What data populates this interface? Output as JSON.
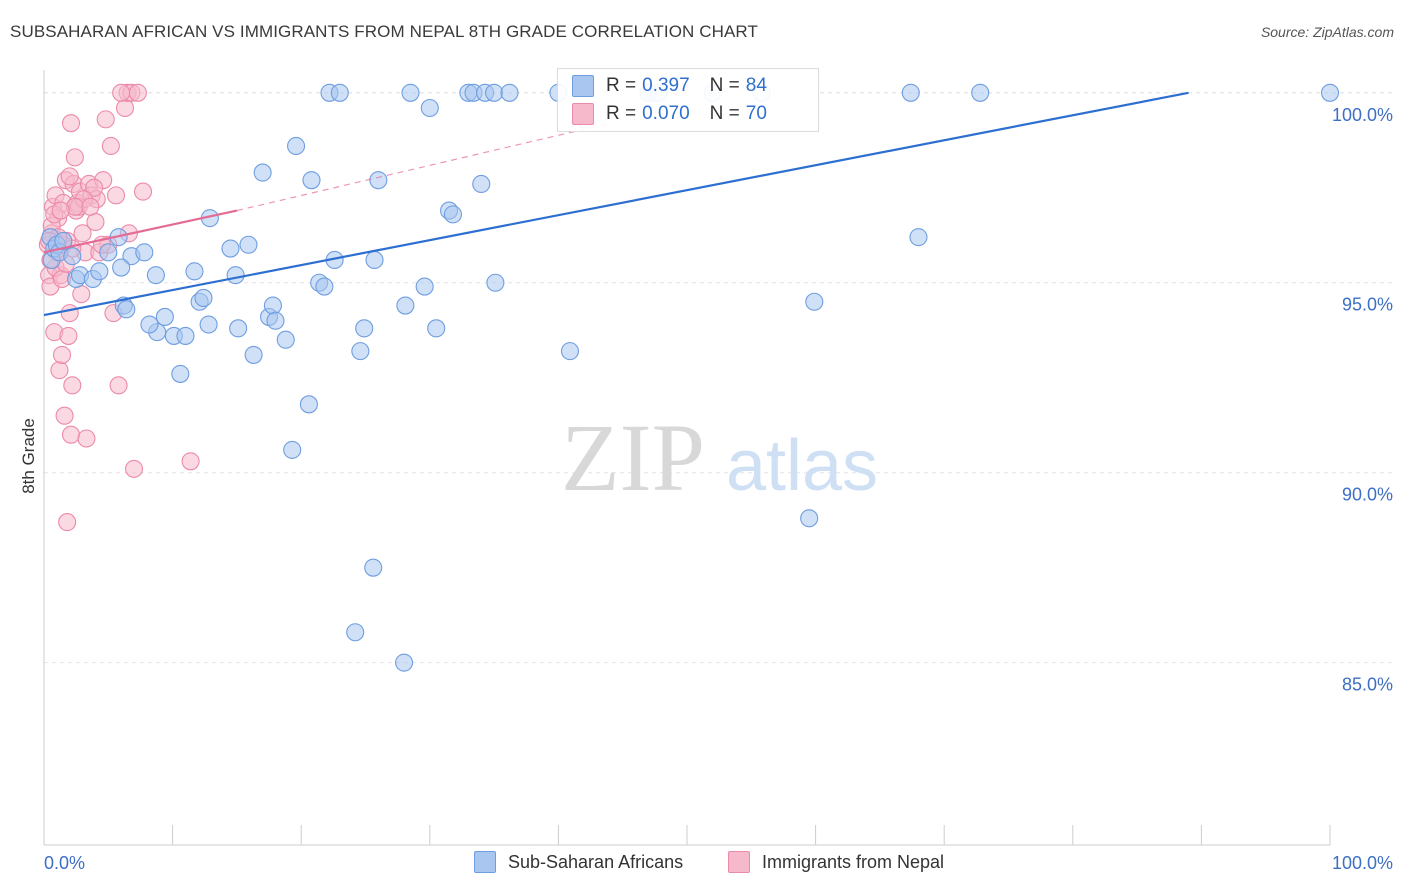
{
  "title": "SUBSAHARAN AFRICAN VS IMMIGRANTS FROM NEPAL 8TH GRADE CORRELATION CHART",
  "source": "Source: ZipAtlas.com",
  "watermark": {
    "zip": "ZIP",
    "atlas": "atlas"
  },
  "colors": {
    "blue_fill": "#a8c6f0",
    "blue_stroke": "#6f9ee0",
    "blue_line": "#2d6fd1",
    "pink_fill": "#f6b9cc",
    "pink_stroke": "#ec8aa9",
    "pink_line": "#e36b94",
    "axis_text": "#3d6fc4",
    "grid": "#e4e4e4"
  },
  "legend_top": [
    {
      "r_label": "R =",
      "r_value": "0.397",
      "n_label": "N =",
      "n_value": "84",
      "series": "blue"
    },
    {
      "r_label": "R =",
      "r_value": "0.070",
      "n_label": "N =",
      "n_value": "70",
      "series": "pink"
    }
  ],
  "legend_bottom": [
    {
      "label": "Sub-Saharan Africans",
      "series": "blue"
    },
    {
      "label": "Immigrants from Nepal",
      "series": "pink"
    }
  ],
  "chart_data": {
    "type": "scatter",
    "title": "SUBSAHARAN AFRICAN VS IMMIGRANTS FROM NEPAL 8TH GRADE CORRELATION CHART",
    "xlabel": "",
    "ylabel": "8th Grade",
    "xlim": [
      0,
      100
    ],
    "ylim": [
      80.2,
      100.6
    ],
    "x_tick_labels": [
      "0.0%",
      "100.0%"
    ],
    "y_ticks": [
      85,
      90,
      95,
      100
    ],
    "y_tick_labels": [
      "85.0%",
      "90.0%",
      "95.0%",
      "100.0%"
    ],
    "grid": true,
    "legend_position": "top-center",
    "series": [
      {
        "name": "Sub-Saharan Africans",
        "color": "blue",
        "R": 0.397,
        "N": 84,
        "trend": {
          "x": [
            0,
            89
          ],
          "y": [
            94.15,
            100.0
          ],
          "style": "solid"
        },
        "points": [
          [
            0.5,
            96.2
          ],
          [
            0.6,
            95.6
          ],
          [
            0.8,
            95.9
          ],
          [
            1.0,
            96.0
          ],
          [
            1.2,
            95.8
          ],
          [
            1.5,
            96.1
          ],
          [
            2.2,
            95.7
          ],
          [
            2.5,
            95.1
          ],
          [
            2.8,
            95.2
          ],
          [
            3.8,
            95.1
          ],
          [
            4.3,
            95.3
          ],
          [
            5.0,
            95.8
          ],
          [
            5.8,
            96.2
          ],
          [
            6.8,
            95.7
          ],
          [
            6.0,
            95.4
          ],
          [
            6.2,
            94.4
          ],
          [
            6.4,
            94.3
          ],
          [
            7.8,
            95.8
          ],
          [
            8.8,
            93.7
          ],
          [
            8.2,
            93.9
          ],
          [
            8.7,
            95.2
          ],
          [
            9.4,
            94.1
          ],
          [
            10.1,
            93.6
          ],
          [
            10.6,
            92.6
          ],
          [
            11.0,
            93.6
          ],
          [
            11.7,
            95.3
          ],
          [
            12.1,
            94.5
          ],
          [
            12.4,
            94.6
          ],
          [
            12.8,
            93.9
          ],
          [
            12.9,
            96.7
          ],
          [
            14.5,
            95.9
          ],
          [
            14.9,
            95.2
          ],
          [
            15.1,
            93.8
          ],
          [
            15.9,
            96.0
          ],
          [
            16.3,
            93.1
          ],
          [
            17.0,
            97.9
          ],
          [
            17.5,
            94.1
          ],
          [
            17.8,
            94.4
          ],
          [
            18.0,
            94.0
          ],
          [
            18.8,
            93.5
          ],
          [
            19.3,
            90.6
          ],
          [
            19.6,
            98.6
          ],
          [
            20.6,
            91.8
          ],
          [
            20.8,
            97.7
          ],
          [
            21.4,
            95.0
          ],
          [
            21.8,
            94.9
          ],
          [
            22.2,
            100.0
          ],
          [
            22.6,
            95.6
          ],
          [
            23.0,
            100.0
          ],
          [
            24.2,
            85.8
          ],
          [
            24.6,
            93.2
          ],
          [
            24.9,
            93.8
          ],
          [
            25.6,
            87.5
          ],
          [
            25.7,
            95.6
          ],
          [
            26.0,
            97.7
          ],
          [
            28.0,
            85.0
          ],
          [
            28.1,
            94.4
          ],
          [
            28.5,
            100.0
          ],
          [
            29.6,
            94.9
          ],
          [
            30.0,
            99.6
          ],
          [
            30.5,
            93.8
          ],
          [
            31.5,
            96.9
          ],
          [
            31.8,
            96.8
          ],
          [
            33.0,
            100.0
          ],
          [
            33.4,
            100.0
          ],
          [
            34.0,
            97.6
          ],
          [
            34.3,
            100.0
          ],
          [
            35.0,
            100.0
          ],
          [
            35.1,
            95.0
          ],
          [
            36.2,
            100.0
          ],
          [
            40.0,
            100.0
          ],
          [
            40.9,
            93.2
          ],
          [
            42.0,
            99.3
          ],
          [
            47.0,
            100.0
          ],
          [
            47.5,
            100.0
          ],
          [
            47.8,
            100.0
          ],
          [
            52.0,
            100.0
          ],
          [
            55.8,
            100.0
          ],
          [
            59.5,
            88.8
          ],
          [
            59.9,
            94.5
          ],
          [
            67.4,
            100.0
          ],
          [
            68.0,
            96.2
          ],
          [
            72.8,
            100.0
          ],
          [
            100.0,
            100.0
          ]
        ]
      },
      {
        "name": "Immigrants from Nepal",
        "color": "pink",
        "R": 0.07,
        "N": 70,
        "trend": {
          "x": [
            0,
            15
          ],
          "y": [
            95.8,
            96.9
          ],
          "style": "solid",
          "extended_to": [
            44,
            99.2
          ],
          "extended_style": "dashed"
        },
        "points": [
          [
            0.3,
            96.0
          ],
          [
            0.4,
            95.2
          ],
          [
            0.5,
            94.9
          ],
          [
            0.6,
            96.3
          ],
          [
            0.7,
            97.0
          ],
          [
            0.8,
            93.7
          ],
          [
            0.9,
            97.3
          ],
          [
            1.0,
            95.8
          ],
          [
            1.1,
            96.7
          ],
          [
            1.2,
            92.7
          ],
          [
            1.3,
            95.2
          ],
          [
            1.4,
            93.1
          ],
          [
            1.5,
            97.1
          ],
          [
            1.6,
            91.5
          ],
          [
            1.7,
            97.7
          ],
          [
            1.8,
            96.1
          ],
          [
            1.9,
            93.6
          ],
          [
            2.0,
            94.2
          ],
          [
            2.1,
            91.0
          ],
          [
            2.2,
            92.3
          ],
          [
            2.3,
            97.6
          ],
          [
            2.4,
            98.3
          ],
          [
            2.5,
            96.9
          ],
          [
            2.6,
            97.1
          ],
          [
            2.8,
            97.4
          ],
          [
            2.9,
            94.7
          ],
          [
            3.0,
            96.3
          ],
          [
            3.2,
            95.8
          ],
          [
            3.5,
            97.6
          ],
          [
            3.7,
            97.3
          ],
          [
            4.0,
            96.6
          ],
          [
            4.1,
            97.2
          ],
          [
            4.3,
            95.8
          ],
          [
            4.6,
            97.7
          ],
          [
            4.8,
            99.3
          ],
          [
            5.0,
            96.0
          ],
          [
            5.2,
            98.6
          ],
          [
            5.4,
            94.2
          ],
          [
            5.6,
            97.3
          ],
          [
            5.8,
            92.3
          ],
          [
            6.3,
            99.6
          ],
          [
            6.5,
            100.0
          ],
          [
            6.6,
            96.3
          ],
          [
            6.8,
            100.0
          ],
          [
            7.0,
            90.1
          ],
          [
            7.3,
            100.0
          ],
          [
            7.7,
            97.4
          ],
          [
            11.4,
            90.3
          ],
          [
            2.1,
            99.2
          ],
          [
            3.3,
            90.9
          ],
          [
            1.8,
            88.7
          ],
          [
            0.9,
            95.4
          ],
          [
            1.5,
            96.0
          ],
          [
            2.7,
            97.0
          ],
          [
            3.9,
            97.5
          ],
          [
            0.6,
            96.5
          ],
          [
            1.1,
            96.2
          ],
          [
            2.2,
            95.9
          ],
          [
            0.5,
            95.6
          ],
          [
            1.4,
            95.1
          ],
          [
            2.0,
            97.8
          ],
          [
            3.1,
            97.2
          ],
          [
            0.8,
            96.8
          ],
          [
            1.7,
            95.5
          ],
          [
            2.4,
            97.0
          ],
          [
            4.5,
            96.0
          ],
          [
            6.0,
            100.0
          ],
          [
            3.6,
            97.0
          ],
          [
            1.3,
            96.9
          ],
          [
            0.4,
            96.1
          ]
        ]
      }
    ]
  }
}
